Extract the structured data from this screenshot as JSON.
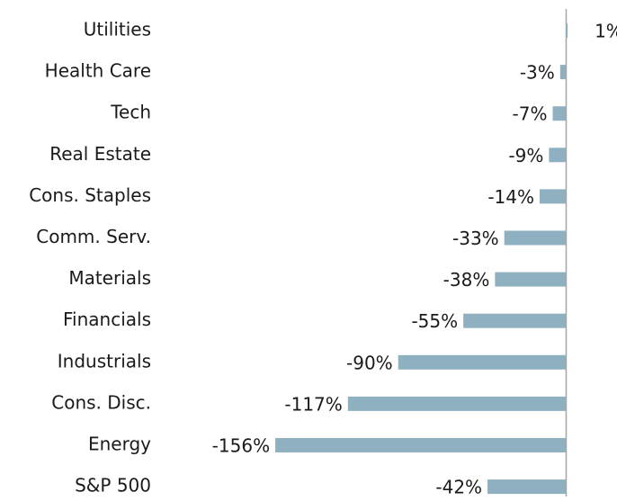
{
  "chart_data": {
    "type": "barh",
    "categories": [
      "Utilities",
      "Health Care",
      "Tech",
      "Real Estate",
      "Cons. Staples",
      "Comm. Serv.",
      "Materials",
      "Financials",
      "Industrials",
      "Cons. Disc.",
      "Energy",
      "S&P 500"
    ],
    "values": [
      1,
      -3,
      -7,
      -9,
      -14,
      -33,
      -38,
      -55,
      -90,
      -117,
      -156,
      -42
    ],
    "value_labels": [
      "1%",
      "-3%",
      "-7%",
      "-9%",
      "-14%",
      "-33%",
      "-38%",
      "-55%",
      "-90%",
      "-117%",
      "-156%",
      "-42%"
    ],
    "color": "#8fb0c1"
  }
}
